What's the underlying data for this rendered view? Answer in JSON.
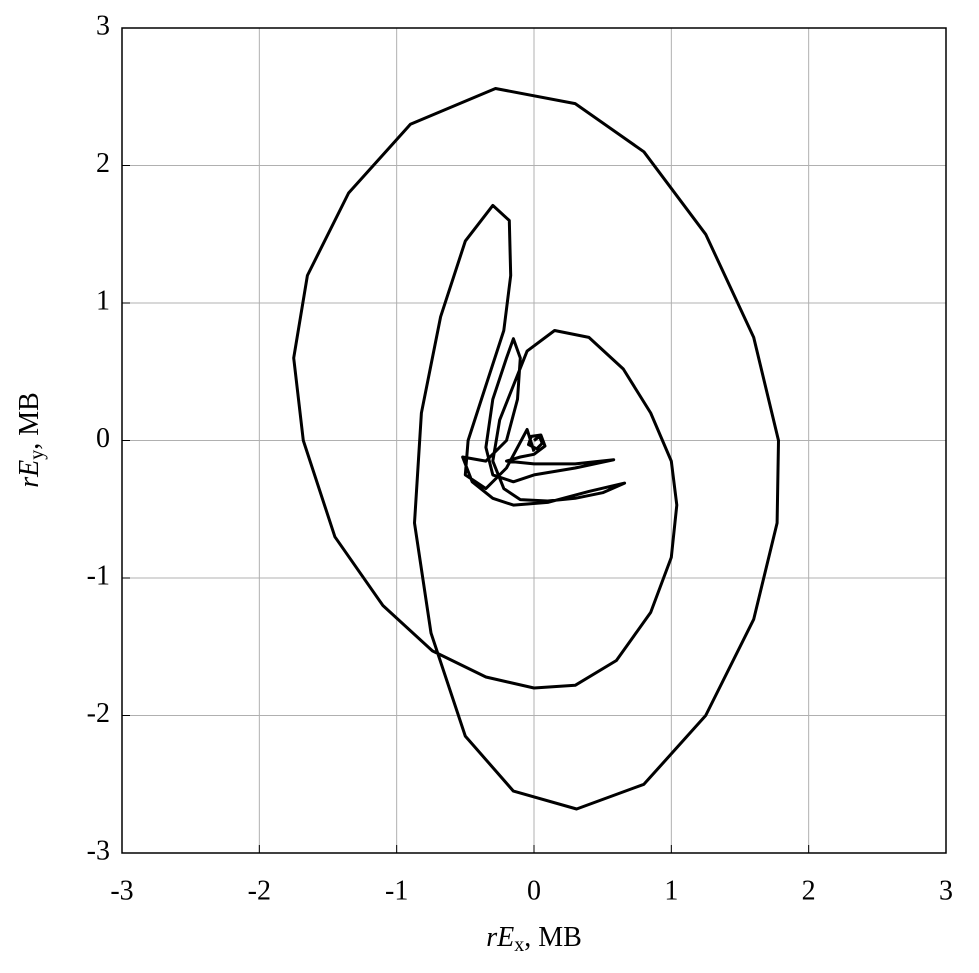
{
  "chart_data": {
    "type": "line",
    "xlabel": [
      "r",
      "E",
      "x",
      ", МВ"
    ],
    "ylabel": [
      "r",
      "E",
      "y",
      ", МВ"
    ],
    "xlim": [
      -3,
      3
    ],
    "ylim": [
      -3,
      3
    ],
    "xticks": [
      -3,
      -2,
      -1,
      0,
      1,
      2,
      3
    ],
    "yticks": [
      -3,
      -2,
      -1,
      0,
      1,
      2,
      3
    ],
    "grid": true,
    "x": [
      0.0,
      0.04,
      0.06,
      0.02,
      -0.04,
      -0.02,
      0.05,
      0.08,
      0.0,
      -0.1,
      -0.2,
      0.0,
      0.3,
      0.58,
      0.3,
      0.0,
      -0.15,
      -0.3,
      -0.35,
      -0.3,
      -0.2,
      -0.15,
      -0.1,
      -0.12,
      -0.2,
      -0.35,
      -0.52,
      -0.45,
      -0.3,
      -0.15,
      0.1,
      0.4,
      0.66,
      0.5,
      0.3,
      0.1,
      -0.1,
      -0.22,
      -0.3,
      -0.25,
      -0.15,
      -0.05,
      0.15,
      0.4,
      0.65,
      0.85,
      1.0,
      1.04,
      1.0,
      0.85,
      0.6,
      0.3,
      0.0,
      -0.35,
      -0.74,
      -1.1,
      -1.45,
      -1.68,
      -1.75,
      -1.65,
      -1.35,
      -0.9,
      -0.28,
      0.3,
      0.8,
      1.25,
      1.6,
      1.78,
      1.77,
      1.6,
      1.25,
      0.8,
      0.31,
      -0.15,
      -0.5,
      -0.75,
      -0.87,
      -0.82,
      -0.68,
      -0.5,
      -0.3,
      -0.18,
      -0.17,
      -0.22,
      -0.35,
      -0.48,
      -0.5,
      -0.35,
      -0.2,
      -0.05,
      0.0
    ],
    "series": [
      {
        "color": "#000000",
        "values": [
          0.0,
          0.03,
          -0.02,
          -0.06,
          -0.03,
          0.03,
          0.04,
          -0.04,
          -0.1,
          -0.12,
          -0.15,
          -0.17,
          -0.17,
          -0.14,
          -0.2,
          -0.25,
          -0.3,
          -0.25,
          -0.05,
          0.3,
          0.6,
          0.74,
          0.6,
          0.3,
          0.0,
          -0.15,
          -0.12,
          -0.3,
          -0.42,
          -0.47,
          -0.45,
          -0.37,
          -0.31,
          -0.38,
          -0.42,
          -0.44,
          -0.43,
          -0.35,
          -0.15,
          0.15,
          0.4,
          0.65,
          0.8,
          0.75,
          0.52,
          0.2,
          -0.15,
          -0.47,
          -0.85,
          -1.25,
          -1.6,
          -1.78,
          -1.8,
          -1.72,
          -1.53,
          -1.2,
          -0.7,
          0.0,
          0.6,
          1.2,
          1.8,
          2.3,
          2.56,
          2.45,
          2.1,
          1.5,
          0.75,
          0.0,
          -0.6,
          -1.3,
          -2.0,
          -2.5,
          -2.68,
          -2.55,
          -2.15,
          -1.4,
          -0.6,
          0.2,
          0.9,
          1.45,
          1.71,
          1.6,
          1.2,
          0.8,
          0.4,
          0.0,
          -0.25,
          -0.35,
          -0.2,
          0.08,
          -0.08
        ]
      }
    ]
  }
}
